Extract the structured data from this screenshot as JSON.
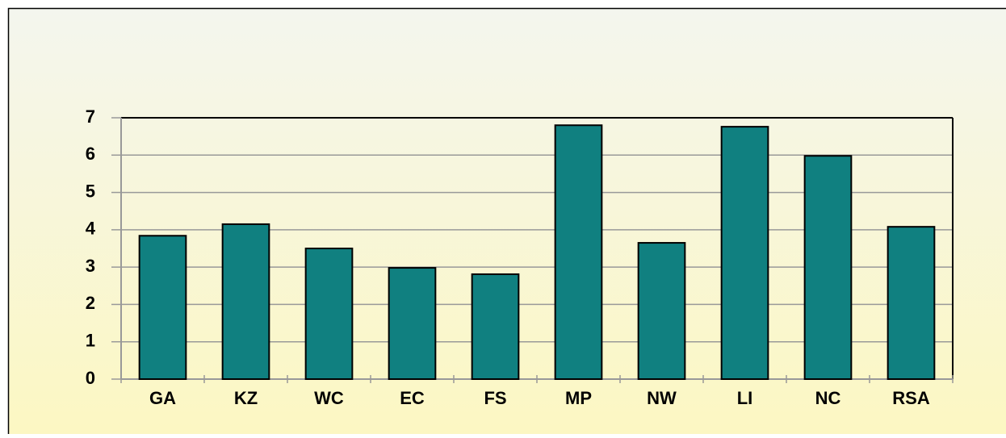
{
  "chart_data": {
    "type": "bar",
    "categories": [
      "GA",
      "KZ",
      "WC",
      "EC",
      "FS",
      "MP",
      "NW",
      "LI",
      "NC",
      "RSA"
    ],
    "values": [
      3.84,
      4.15,
      3.5,
      2.98,
      2.81,
      6.8,
      3.65,
      6.76,
      5.98,
      4.08
    ],
    "color": "#108080",
    "ylim": [
      0,
      7
    ],
    "yticks": [
      0,
      1,
      2,
      3,
      4,
      5,
      6,
      7
    ],
    "grid": true
  }
}
